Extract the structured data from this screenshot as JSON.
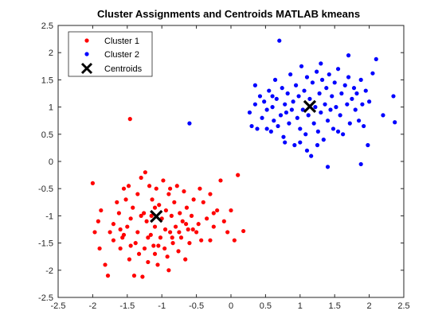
{
  "chart_data": {
    "type": "scatter",
    "title": "Cluster Assignments and Centroids MATLAB kmeans",
    "xlabel": "",
    "ylabel": "",
    "xlim": [
      -2.5,
      2.5
    ],
    "ylim": [
      -2.5,
      2.5
    ],
    "xticks": [
      -2.5,
      -2,
      -1.5,
      -1,
      -0.5,
      0,
      0.5,
      1,
      1.5,
      2,
      2.5
    ],
    "yticks": [
      -2.5,
      -2,
      -1.5,
      -1,
      -0.5,
      0,
      0.5,
      1,
      1.5,
      2,
      2.5
    ],
    "xtick_labels": [
      "-2.5",
      "-2",
      "-1.5",
      "-1",
      "-0.5",
      "0",
      "0.5",
      "1",
      "1.5",
      "2",
      "2.5"
    ],
    "ytick_labels": [
      "-2.5",
      "-2",
      "-1.5",
      "-1",
      "-0.5",
      "0",
      "0.5",
      "1",
      "1.5",
      "2",
      "2.5"
    ],
    "grid": false,
    "legend_position": "top-left",
    "series": [
      {
        "name": "Cluster 1",
        "color": "#ff0000",
        "marker": "dot",
        "points": [
          [
            -2.0,
            -0.4
          ],
          [
            -1.97,
            -1.3
          ],
          [
            -1.92,
            -1.1
          ],
          [
            -1.9,
            -1.6
          ],
          [
            -1.88,
            -0.9
          ],
          [
            -1.82,
            -1.9
          ],
          [
            -1.78,
            -2.1
          ],
          [
            -1.75,
            -1.3
          ],
          [
            -1.7,
            -1.15
          ],
          [
            -1.65,
            -0.75
          ],
          [
            -1.62,
            -0.95
          ],
          [
            -1.6,
            -1.6
          ],
          [
            -1.57,
            -1.4
          ],
          [
            -1.55,
            -0.5
          ],
          [
            -1.52,
            -0.7
          ],
          [
            -1.5,
            -1.2
          ],
          [
            -1.47,
            -1.8
          ],
          [
            -1.45,
            -1.05
          ],
          [
            -1.46,
            0.78
          ],
          [
            -1.42,
            -0.85
          ],
          [
            -1.4,
            -2.1
          ],
          [
            -1.38,
            -1.5
          ],
          [
            -1.35,
            -0.6
          ],
          [
            -1.33,
            -1.7
          ],
          [
            -1.3,
            -0.3
          ],
          [
            -1.28,
            -2.12
          ],
          [
            -1.26,
            -0.95
          ],
          [
            -1.24,
            -0.2
          ],
          [
            -1.22,
            -1.1
          ],
          [
            -1.2,
            -1.85
          ],
          [
            -1.18,
            -0.45
          ],
          [
            -1.16,
            -1.35
          ],
          [
            -1.14,
            -0.7
          ],
          [
            -1.12,
            -1.55
          ],
          [
            -1.1,
            -1.2
          ],
          [
            -1.08,
            -0.5
          ],
          [
            -1.06,
            -1.9
          ],
          [
            -1.04,
            -0.8
          ],
          [
            -1.02,
            -1.4
          ],
          [
            -1.0,
            -1.05
          ],
          [
            -0.98,
            -0.35
          ],
          [
            -0.96,
            -1.6
          ],
          [
            -0.94,
            -0.9
          ],
          [
            -0.92,
            -1.75
          ],
          [
            -0.9,
            -0.6
          ],
          [
            -0.88,
            -1.3
          ],
          [
            -0.86,
            -1.0
          ],
          [
            -0.84,
            -1.5
          ],
          [
            -0.82,
            -0.75
          ],
          [
            -0.8,
            -1.2
          ],
          [
            -0.78,
            -0.45
          ],
          [
            -0.76,
            -1.65
          ],
          [
            -0.74,
            -0.95
          ],
          [
            -0.72,
            -1.4
          ],
          [
            -0.7,
            -1.1
          ],
          [
            -0.68,
            -0.55
          ],
          [
            -0.66,
            -1.8
          ],
          [
            -0.64,
            -0.85
          ],
          [
            -0.62,
            -1.25
          ],
          [
            -0.6,
            -1.5
          ],
          [
            -0.57,
            -1.0
          ],
          [
            -0.54,
            -0.7
          ],
          [
            -0.5,
            -1.3
          ],
          [
            -0.47,
            -1.15
          ],
          [
            -0.43,
            -1.45
          ],
          [
            -0.4,
            -0.75
          ],
          [
            -0.35,
            -1.05
          ],
          [
            -0.3,
            -0.6
          ],
          [
            -0.25,
            -1.2
          ],
          [
            -0.2,
            -0.9
          ],
          [
            -0.15,
            -0.35
          ],
          [
            -0.1,
            -1.1
          ],
          [
            -0.05,
            -1.3
          ],
          [
            0.0,
            -0.9
          ],
          [
            0.05,
            -1.45
          ],
          [
            0.1,
            -0.25
          ],
          [
            -1.25,
            -1.6
          ],
          [
            -1.35,
            -1.3
          ],
          [
            -1.45,
            -1.55
          ],
          [
            -1.55,
            -1.35
          ],
          [
            -1.15,
            -1.0
          ],
          [
            -0.95,
            -1.25
          ],
          [
            -0.85,
            -1.4
          ],
          [
            -1.05,
            -1.55
          ],
          [
            -1.2,
            -1.4
          ],
          [
            -1.6,
            -1.25
          ],
          [
            -1.7,
            -1.45
          ],
          [
            -0.65,
            -1.15
          ],
          [
            -0.75,
            -1.3
          ],
          [
            -0.55,
            -1.25
          ],
          [
            -0.9,
            -2.0
          ],
          [
            -1.3,
            -1.0
          ],
          [
            -1.1,
            -0.85
          ],
          [
            -0.45,
            -0.5
          ],
          [
            -0.3,
            -1.45
          ],
          [
            0.18,
            -1.28
          ],
          [
            -1.48,
            -0.45
          ],
          [
            -1.1,
            -1.7
          ],
          [
            -0.88,
            -0.5
          ],
          [
            -0.25,
            -0.95
          ]
        ]
      },
      {
        "name": "Cluster 2",
        "color": "#0000ff",
        "marker": "dot",
        "points": [
          [
            -0.6,
            0.7
          ],
          [
            0.27,
            0.9
          ],
          [
            0.3,
            0.65
          ],
          [
            0.35,
            1.05
          ],
          [
            0.38,
            0.6
          ],
          [
            0.42,
            1.2
          ],
          [
            0.45,
            0.8
          ],
          [
            0.48,
            1.1
          ],
          [
            0.52,
            0.95
          ],
          [
            0.55,
            1.3
          ],
          [
            0.58,
            0.55
          ],
          [
            0.6,
            1.0
          ],
          [
            0.62,
            0.75
          ],
          [
            0.64,
            1.5
          ],
          [
            0.66,
            1.15
          ],
          [
            0.68,
            0.65
          ],
          [
            0.7,
            2.22
          ],
          [
            0.72,
            0.85
          ],
          [
            0.74,
            1.35
          ],
          [
            0.76,
            0.45
          ],
          [
            0.78,
            1.05
          ],
          [
            0.8,
            0.9
          ],
          [
            0.82,
            1.25
          ],
          [
            0.84,
            0.7
          ],
          [
            0.86,
            1.6
          ],
          [
            0.88,
            0.95
          ],
          [
            0.9,
            1.1
          ],
          [
            0.92,
            0.3
          ],
          [
            0.94,
            1.4
          ],
          [
            0.96,
            0.8
          ],
          [
            0.98,
            1.2
          ],
          [
            1.0,
            0.6
          ],
          [
            1.02,
            1.75
          ],
          [
            1.04,
            0.95
          ],
          [
            1.06,
            1.3
          ],
          [
            1.08,
            0.5
          ],
          [
            1.1,
            1.55
          ],
          [
            1.12,
            0.85
          ],
          [
            1.14,
            1.15
          ],
          [
            1.16,
            0.1
          ],
          [
            1.18,
            1.45
          ],
          [
            1.2,
            0.7
          ],
          [
            1.22,
            1.0
          ],
          [
            1.24,
            1.65
          ],
          [
            1.26,
            0.55
          ],
          [
            1.28,
            1.25
          ],
          [
            1.3,
            0.9
          ],
          [
            1.32,
            1.5
          ],
          [
            1.34,
            0.4
          ],
          [
            1.36,
            1.05
          ],
          [
            1.38,
            1.35
          ],
          [
            1.4,
            0.75
          ],
          [
            1.42,
            1.6
          ],
          [
            1.44,
            0.95
          ],
          [
            1.46,
            1.2
          ],
          [
            1.48,
            0.6
          ],
          [
            1.5,
            1.45
          ],
          [
            1.52,
            1.0
          ],
          [
            1.55,
            1.7
          ],
          [
            1.58,
            0.85
          ],
          [
            1.6,
            1.25
          ],
          [
            1.62,
            0.5
          ],
          [
            1.65,
            1.4
          ],
          [
            1.68,
            1.05
          ],
          [
            1.7,
            1.55
          ],
          [
            1.72,
            0.7
          ],
          [
            1.75,
            1.15
          ],
          [
            1.78,
            1.35
          ],
          [
            1.8,
            0.95
          ],
          [
            1.82,
            1.25
          ],
          [
            1.85,
            0.75
          ],
          [
            1.88,
            1.5
          ],
          [
            1.9,
            1.05
          ],
          [
            1.92,
            0.65
          ],
          [
            1.95,
            1.3
          ],
          [
            1.98,
            0.3
          ],
          [
            2.0,
            1.1
          ],
          [
            2.05,
            1.62
          ],
          [
            2.1,
            1.88
          ],
          [
            2.2,
            0.85
          ],
          [
            2.35,
            1.2
          ],
          [
            2.37,
            0.72
          ],
          [
            1.4,
            -0.1
          ],
          [
            1.88,
            -0.05
          ],
          [
            0.35,
            1.4
          ],
          [
            0.78,
            0.35
          ],
          [
            1.3,
            1.8
          ],
          [
            1.7,
            1.95
          ],
          [
            1.1,
            0.2
          ],
          [
            0.6,
            1.2
          ],
          [
            1.0,
            0.35
          ],
          [
            1.55,
            0.55
          ],
          [
            0.52,
            0.6
          ],
          [
            1.25,
            0.3
          ]
        ]
      }
    ],
    "centroids": {
      "name": "Centroids",
      "color": "#000000",
      "marker": "x",
      "points": [
        [
          -1.08,
          -1.01
        ],
        [
          1.14,
          1.01
        ]
      ]
    }
  }
}
